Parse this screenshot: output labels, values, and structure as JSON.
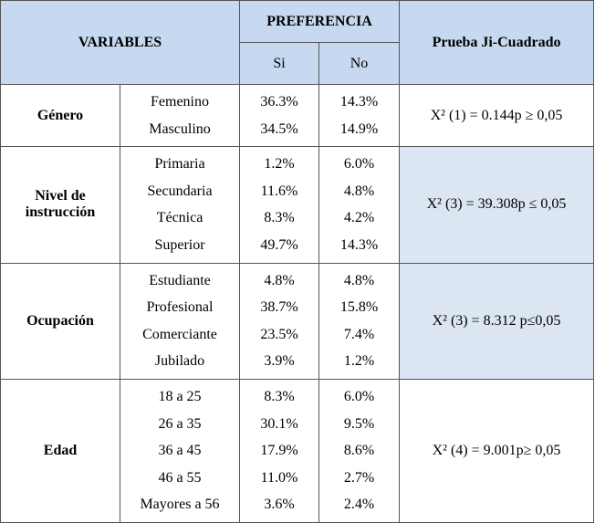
{
  "header": {
    "variables": "VARIABLES",
    "preferencia": "PREFERENCIA",
    "si": "Si",
    "no": "No",
    "prueba": "Prueba Ji-Cuadrado"
  },
  "groups": [
    {
      "label": "Género",
      "test": "X² (1) = 0.144p ≥ 0,05",
      "rows": [
        {
          "name": "Femenino",
          "si": "36.3%",
          "no": "14.3%"
        },
        {
          "name": "Masculino",
          "si": "34.5%",
          "no": "14.9%"
        }
      ]
    },
    {
      "label": "Nivel de instrucción",
      "test": "X² (3) = 39.308p ≤ 0,05",
      "rows": [
        {
          "name": "Primaria",
          "si": "1.2%",
          "no": "6.0%"
        },
        {
          "name": "Secundaria",
          "si": "11.6%",
          "no": "4.8%"
        },
        {
          "name": "Técnica",
          "si": "8.3%",
          "no": "4.2%"
        },
        {
          "name": "Superior",
          "si": "49.7%",
          "no": "14.3%"
        }
      ]
    },
    {
      "label": "Ocupación",
      "test": "X² (3) = 8.312 p≤0,05",
      "rows": [
        {
          "name": "Estudiante",
          "si": "4.8%",
          "no": "4.8%"
        },
        {
          "name": "Profesional",
          "si": "38.7%",
          "no": "15.8%"
        },
        {
          "name": "Comerciante",
          "si": "23.5%",
          "no": "7.4%"
        },
        {
          "name": "Jubilado",
          "si": "3.9%",
          "no": "1.2%"
        }
      ]
    },
    {
      "label": "Edad",
      "test": "X² (4) = 9.001p≥ 0,05",
      "rows": [
        {
          "name": "18 a 25",
          "si": "8.3%",
          "no": "6.0%"
        },
        {
          "name": "26 a 35",
          "si": "30.1%",
          "no": "9.5%"
        },
        {
          "name": "36 a 45",
          "si": "17.9%",
          "no": "8.6%"
        },
        {
          "name": "46 a 55",
          "si": "11.0%",
          "no": "2.7%"
        },
        {
          "name": "Mayores a 56",
          "si": "3.6%",
          "no": "2.4%"
        }
      ]
    }
  ]
}
